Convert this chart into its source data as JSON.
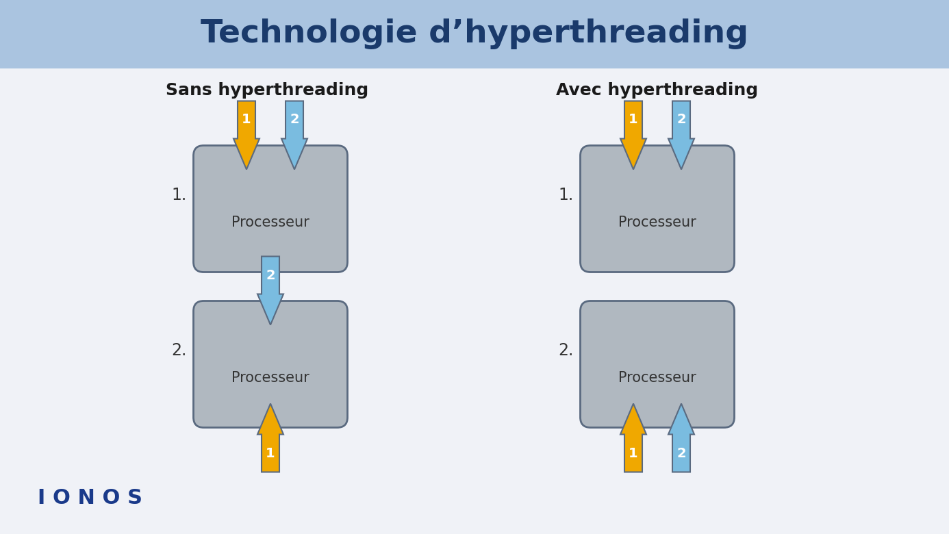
{
  "title": "Technologie d’hyperthreading",
  "title_color": "#1a3a6b",
  "title_bg_color": "#aac4e0",
  "bg_color": "#f0f2f7",
  "left_section_title": "Sans hyperthreading",
  "right_section_title": "Avec hyperthreading",
  "section_title_color": "#1a1a1a",
  "processor_box_color": "#b0b8c0",
  "processor_box_edge_color": "#5a6a80",
  "processor_text": "Processeur",
  "arrow_yellow_color": "#f0a800",
  "arrow_blue_color": "#7abce0",
  "arrow_edge_color": "#5a6a80",
  "label_color": "#333333",
  "ionos_color": "#1a3a8a",
  "logo_text": "I O N O S"
}
